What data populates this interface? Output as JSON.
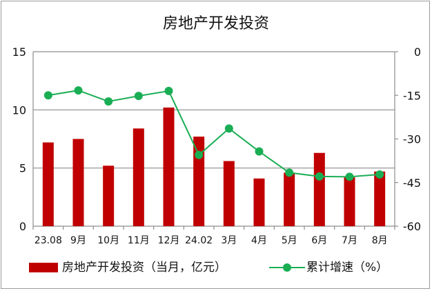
{
  "chart_data": {
    "type": "bar+line",
    "title": "房地产开发投资",
    "categories": [
      "23.08",
      "9月",
      "10月",
      "11月",
      "12月",
      "24.02",
      "3月",
      "4月",
      "5月",
      "6月",
      "7月",
      "8月"
    ],
    "series": [
      {
        "name": "房地产开发投资（当月，亿元）",
        "type": "bar",
        "axis": "left",
        "color": "#c00000",
        "values": [
          7.2,
          7.5,
          5.2,
          8.4,
          10.2,
          7.7,
          5.6,
          4.1,
          4.6,
          6.3,
          4.2,
          4.7
        ]
      },
      {
        "name": "累计增速（%）",
        "type": "line",
        "axis": "right",
        "color": "#1aae54",
        "values": [
          -15.0,
          -13.3,
          -17.1,
          -15.2,
          -13.5,
          -35.5,
          -26.4,
          -34.3,
          -41.6,
          -42.9,
          -43.0,
          -42.2
        ]
      }
    ],
    "left_axis": {
      "ylim": [
        0,
        15
      ],
      "ticks": [
        "0",
        "5",
        "10",
        "15"
      ]
    },
    "right_axis": {
      "ylim": [
        -60,
        0
      ],
      "ticks": [
        "0",
        "-15",
        "-30",
        "-45",
        "-60"
      ]
    },
    "grid": true,
    "legend_position": "bottom"
  }
}
